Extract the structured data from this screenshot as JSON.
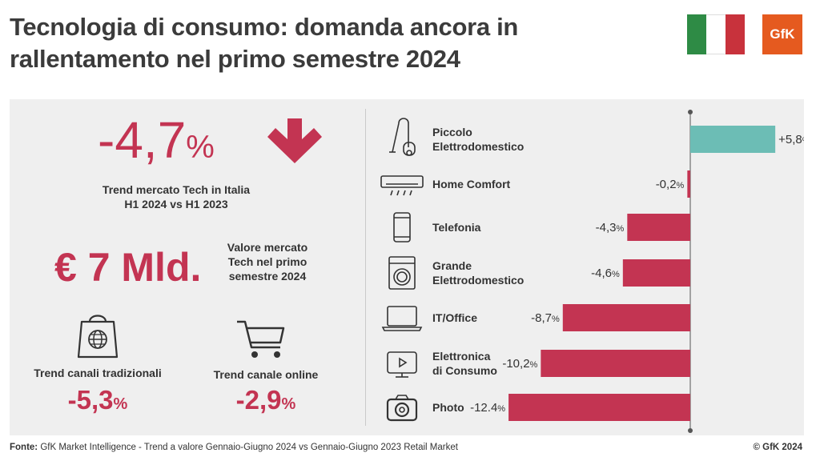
{
  "header": {
    "title_line1": "Tecnologia di consumo: domanda ancora in",
    "title_line2": "rallentamento nel primo semestre 2024",
    "logo": "GfK",
    "flag": "italy-flag"
  },
  "kpis": {
    "tech_trend_value": "-4,7",
    "tech_trend_unit": "%",
    "tech_trend_label_line1": "Trend mercato Tech in Italia",
    "tech_trend_label_line2": "H1 2024 vs H1 2023",
    "market_value": "€ 7 Mld.",
    "market_label_line1": "Valore mercato",
    "market_label_line2": "Tech nel primo",
    "market_label_line3": "semestre 2024",
    "traditional_label": "Trend canali tradizionali",
    "traditional_value": "-5,3",
    "traditional_unit": "%",
    "online_label": "Trend canale online",
    "online_value": "-2,9",
    "online_unit": "%"
  },
  "chart_data": {
    "type": "bar",
    "orientation": "horizontal",
    "categories": [
      [
        "Piccolo",
        "Elettrodomestico"
      ],
      [
        "Home Comfort"
      ],
      [
        "Telefonia"
      ],
      [
        "Grande",
        "Elettrodomestico"
      ],
      [
        "IT/Office"
      ],
      [
        "Elettronica",
        "di Consumo"
      ],
      [
        "Photo"
      ]
    ],
    "icons": [
      "vacuum-cleaner-icon",
      "air-conditioner-icon",
      "smartphone-icon",
      "washing-machine-icon",
      "laptop-icon",
      "tv-icon",
      "camera-icon"
    ],
    "values": [
      5.8,
      -0.2,
      -4.3,
      -4.6,
      -8.7,
      -10.2,
      -12.4
    ],
    "value_labels": [
      "+5,8",
      "-0,2",
      "-4,3",
      "-4,6",
      "-8,7",
      "-10,2",
      "-12.4"
    ],
    "unit": "%",
    "colors": {
      "positive": "#6cbdb5",
      "negative": "#c33452"
    },
    "xlim": [
      -12.4,
      5.8
    ],
    "grid": false,
    "legend": "none"
  },
  "footer": {
    "source_label": "Fonte:",
    "source_text": " GfK Market Intelligence  - Trend a valore Gennaio-Giugno 2024 vs Gennaio-Giugno 2023 Retail Market",
    "copyright": "© GfK 2024"
  }
}
